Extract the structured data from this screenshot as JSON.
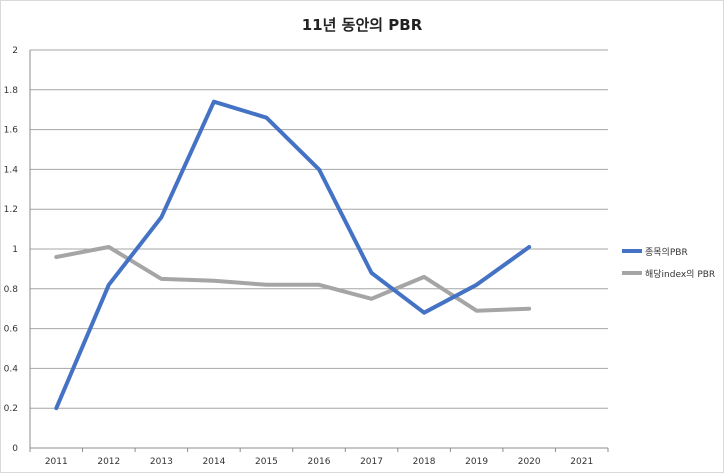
{
  "chart_data": {
    "type": "line",
    "title": "11년 동안의 PBR",
    "xlabel": "",
    "ylabel": "",
    "x": [
      "2011",
      "2012",
      "2013",
      "2014",
      "2015",
      "2016",
      "2017",
      "2018",
      "2019",
      "2020",
      "2021"
    ],
    "y_ticks": [
      "0",
      "0.2",
      "0.4",
      "0.6",
      "0.8",
      "1",
      "1.2",
      "1.4",
      "1.6",
      "1.8",
      "2"
    ],
    "ylim": [
      0,
      2
    ],
    "grid": true,
    "legend_position": "right",
    "series": [
      {
        "name": "종목의PBR",
        "color": "#4472c4",
        "values": [
          0.2,
          0.82,
          1.16,
          1.74,
          1.66,
          1.4,
          0.88,
          0.68,
          0.82,
          1.01,
          null
        ]
      },
      {
        "name": "해당index의 PBR",
        "color": "#a5a5a5",
        "values": [
          0.96,
          1.01,
          0.85,
          0.84,
          0.82,
          0.82,
          0.75,
          0.86,
          0.69,
          0.7,
          null
        ]
      }
    ]
  }
}
